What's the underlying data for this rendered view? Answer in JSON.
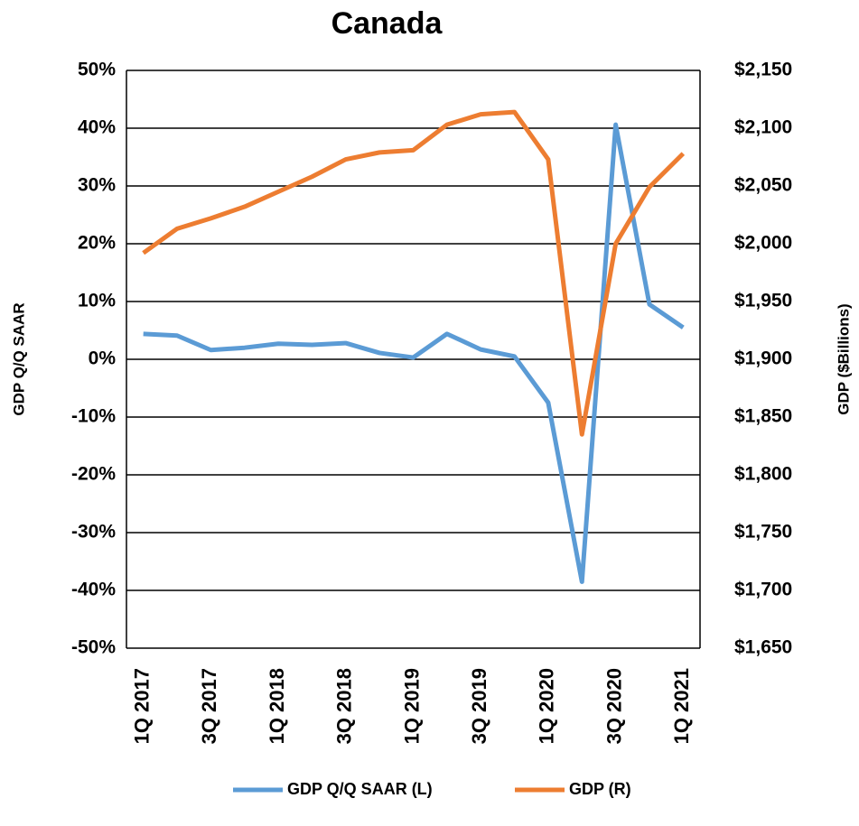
{
  "chart_data": {
    "type": "line",
    "title": "Canada",
    "categories": [
      "1Q 2017",
      null,
      "3Q 2017",
      null,
      "1Q 2018",
      null,
      "3Q 2018",
      null,
      "1Q 2019",
      null,
      "3Q 2019",
      null,
      "1Q 2020",
      null,
      "3Q 2020",
      null,
      "1Q 2021"
    ],
    "series": [
      {
        "name": "GDP Q/Q SAAR (L)",
        "color": "#5b9bd5",
        "axis": "y",
        "values": [
          4.4,
          4.1,
          1.6,
          2.0,
          2.7,
          2.5,
          2.8,
          1.1,
          0.3,
          4.4,
          1.7,
          0.5,
          -7.5,
          -38.5,
          40.6,
          9.5,
          5.5
        ]
      },
      {
        "name": "GDP (R)",
        "color": "#ed7d31",
        "axis": "y2",
        "values": [
          1992,
          2013,
          2022,
          2032,
          2045,
          2058,
          2073,
          2079,
          2081,
          2103,
          2112,
          2114,
          2073,
          1835,
          2000,
          2049,
          2078
        ]
      }
    ],
    "ylabel": "GDP Q/Q SAAR",
    "y2label": "GDP ($Billions)",
    "ylim": [
      -50,
      50
    ],
    "yticks": [
      {
        "value": -50,
        "label": "-50%"
      },
      {
        "value": -40,
        "label": "-40%"
      },
      {
        "value": -30,
        "label": "-30%"
      },
      {
        "value": -20,
        "label": "-20%"
      },
      {
        "value": -10,
        "label": "-10%"
      },
      {
        "value": 0,
        "label": "0%"
      },
      {
        "value": 10,
        "label": "10%"
      },
      {
        "value": 20,
        "label": "20%"
      },
      {
        "value": 30,
        "label": "30%"
      },
      {
        "value": 40,
        "label": "40%"
      },
      {
        "value": 50,
        "label": "50%"
      }
    ],
    "y2lim": [
      1650,
      2150
    ],
    "y2ticks": [
      {
        "value": 1650,
        "label": "$1,650"
      },
      {
        "value": 1700,
        "label": "$1,700"
      },
      {
        "value": 1750,
        "label": "$1,750"
      },
      {
        "value": 1800,
        "label": "$1,800"
      },
      {
        "value": 1850,
        "label": "$1,850"
      },
      {
        "value": 1900,
        "label": "$1,900"
      },
      {
        "value": 1950,
        "label": "$1,950"
      },
      {
        "value": 2000,
        "label": "$2,000"
      },
      {
        "value": 2050,
        "label": "$2,050"
      },
      {
        "value": 2100,
        "label": "$2,100"
      },
      {
        "value": 2150,
        "label": "$2,150"
      }
    ],
    "grid": true,
    "legend": "bottom"
  }
}
